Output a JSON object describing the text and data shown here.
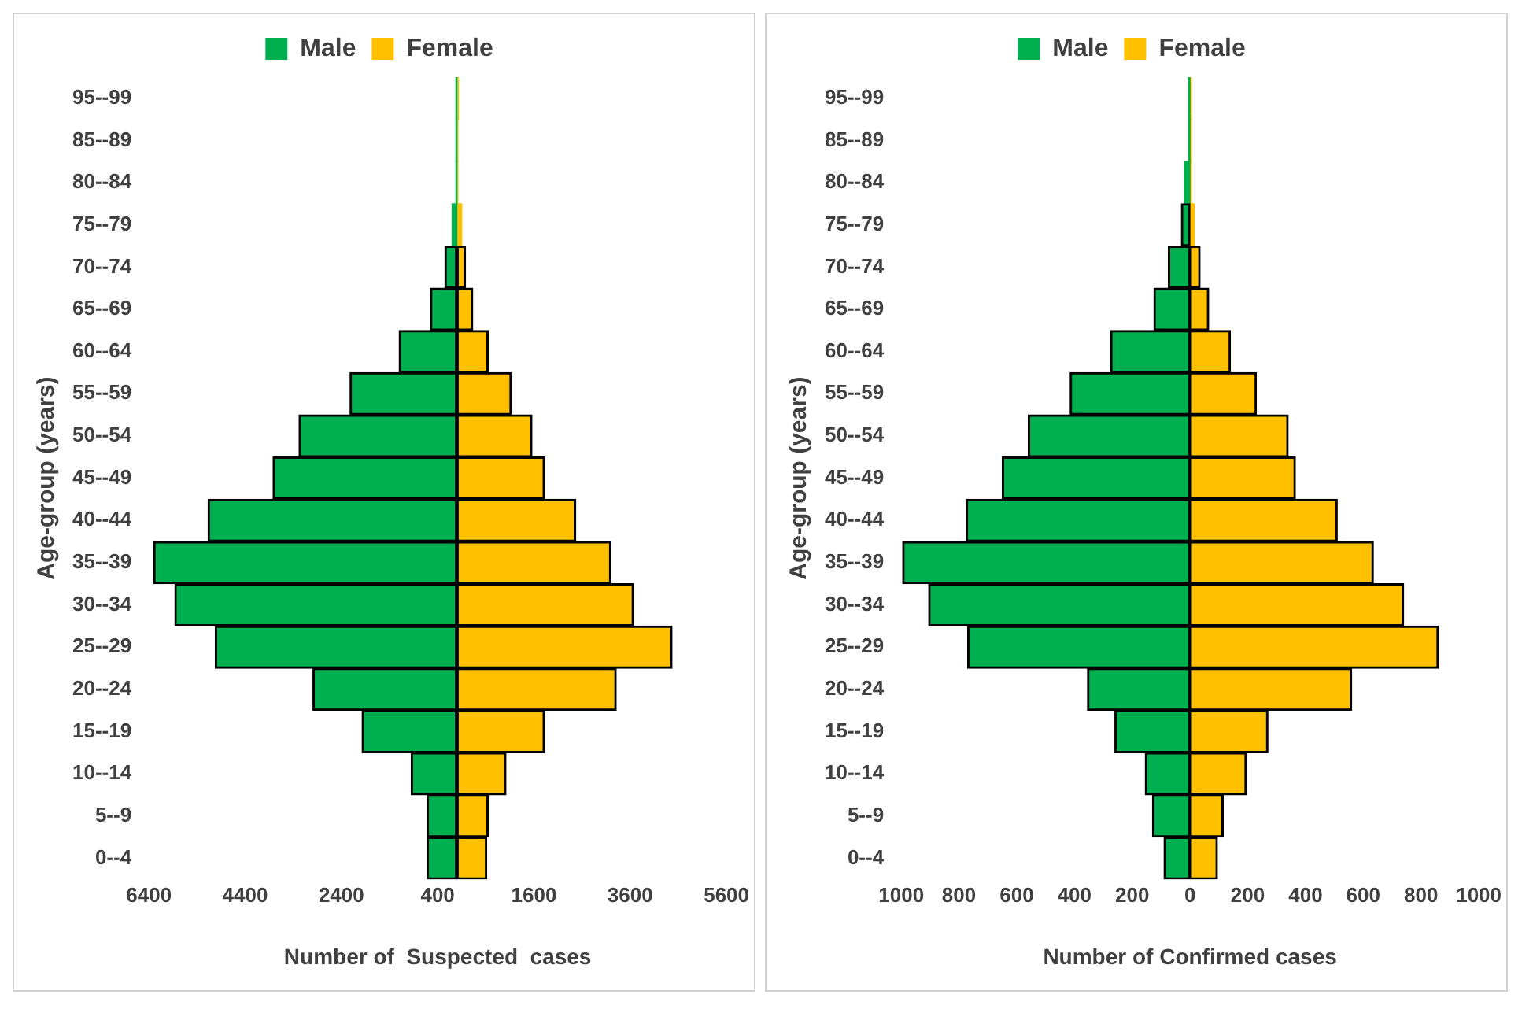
{
  "chart_data": [
    {
      "type": "bar",
      "orientation": "horizontal",
      "stacked": true,
      "xlabel": "Number of  Suspected  cases",
      "ylabel": "Age-group (years)",
      "legend": "top",
      "categories": [
        "95--99",
        "85--89",
        "80--84",
        "75--79",
        "70--74",
        "65--69",
        "60--64",
        "55--59",
        "50--54",
        "45--49",
        "40--44",
        "35--39",
        "30--34",
        "25--29",
        "20--24",
        "15--19",
        "10--14",
        "5--9",
        "0--4"
      ],
      "xlim": [
        -6400,
        5600
      ],
      "xticks": [
        {
          "value": -6400,
          "label": "6400"
        },
        {
          "value": -4400,
          "label": "4400"
        },
        {
          "value": -2400,
          "label": "2400"
        },
        {
          "value": -400,
          "label": "400"
        },
        1600,
        3600,
        5600
      ],
      "series": [
        {
          "name": "Male",
          "color": "#00b050",
          "values": [
            -20,
            -20,
            -20,
            -100,
            -250,
            -550,
            -1200,
            -2220,
            -3280,
            -3820,
            -5170,
            -6300,
            -5860,
            -5020,
            -2990,
            -1970,
            -950,
            -620,
            -620
          ]
        },
        {
          "name": "Female",
          "color": "#ffc000",
          "values": [
            30,
            20,
            20,
            100,
            180,
            330,
            650,
            1130,
            1560,
            1820,
            2470,
            3200,
            3670,
            4470,
            3310,
            1820,
            1020,
            650,
            620
          ]
        }
      ]
    },
    {
      "type": "bar",
      "orientation": "horizontal",
      "stacked": true,
      "xlabel": "Number of Confirmed cases",
      "ylabel": "Age-group (years)",
      "legend": "top",
      "categories": [
        "95--99",
        "85--89",
        "80--84",
        "75--79",
        "70--74",
        "65--69",
        "60--64",
        "55--59",
        "50--54",
        "45--49",
        "40--44",
        "35--39",
        "30--34",
        "25--29",
        "20--24",
        "15--19",
        "10--14",
        "5--9",
        "0--4"
      ],
      "xlim": [
        -1000,
        1000
      ],
      "xticks": [
        {
          "value": -1000,
          "label": "1000"
        },
        {
          "value": -800,
          "label": "800"
        },
        {
          "value": -600,
          "label": "600"
        },
        {
          "value": -400,
          "label": "400"
        },
        {
          "value": -200,
          "label": "200"
        },
        0,
        200,
        400,
        600,
        800,
        1000
      ],
      "series": [
        {
          "name": "Male",
          "color": "#00b050",
          "values": [
            -5,
            -5,
            -20,
            -30,
            -75,
            -125,
            -275,
            -415,
            -560,
            -650,
            -775,
            -995,
            -905,
            -770,
            -355,
            -260,
            -155,
            -130,
            -90
          ]
        },
        {
          "name": "Female",
          "color": "#ffc000",
          "values": [
            5,
            5,
            5,
            15,
            35,
            65,
            140,
            230,
            340,
            365,
            510,
            635,
            740,
            860,
            560,
            270,
            195,
            115,
            95
          ]
        }
      ]
    }
  ]
}
